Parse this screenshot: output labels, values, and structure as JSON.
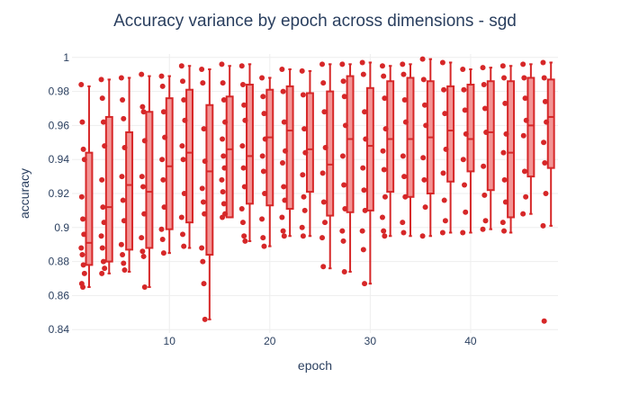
{
  "chart_data": {
    "type": "box",
    "title": "Accuracy variance by epoch across dimensions - sgd",
    "xlabel": "epoch",
    "ylabel": "accuracy",
    "xlim": [
      0.3,
      48.7
    ],
    "ylim": [
      0.838,
      1.002
    ],
    "x_ticks": [
      10,
      20,
      30,
      40
    ],
    "y_ticks": [
      0.84,
      0.86,
      0.88,
      0.9,
      0.92,
      0.94,
      0.96,
      0.98,
      1
    ],
    "y_tick_labels": [
      "0.84",
      "0.86",
      "0.88",
      "0.9",
      "0.92",
      "0.94",
      "0.96",
      "0.98",
      "1"
    ],
    "grid": true,
    "colors": {
      "box_line": "#d62728",
      "box_fill": "#f28e8e",
      "point": "#d62728",
      "text": "#2a3f5f",
      "grid": "#eeeeee"
    },
    "boxes": [
      {
        "epoch": 2,
        "min": 0.865,
        "q1": 0.878,
        "median": 0.891,
        "q3": 0.944,
        "max": 0.983,
        "points": [
          0.984,
          0.962,
          0.946,
          0.94,
          0.918,
          0.905,
          0.896,
          0.888,
          0.884,
          0.878,
          0.873,
          0.867,
          0.865
        ]
      },
      {
        "epoch": 4,
        "min": 0.873,
        "q1": 0.88,
        "median": 0.912,
        "q3": 0.965,
        "max": 0.987,
        "points": [
          0.987,
          0.976,
          0.962,
          0.948,
          0.928,
          0.912,
          0.903,
          0.895,
          0.888,
          0.88,
          0.876,
          0.873
        ]
      },
      {
        "epoch": 6,
        "min": 0.874,
        "q1": 0.887,
        "median": 0.925,
        "q3": 0.956,
        "max": 0.988,
        "points": [
          0.988,
          0.975,
          0.964,
          0.947,
          0.93,
          0.916,
          0.904,
          0.89,
          0.884,
          0.879,
          0.875
        ]
      },
      {
        "epoch": 8,
        "min": 0.865,
        "q1": 0.888,
        "median": 0.921,
        "q3": 0.968,
        "max": 0.989,
        "points": [
          0.99,
          0.971,
          0.968,
          0.951,
          0.93,
          0.924,
          0.908,
          0.894,
          0.886,
          0.883,
          0.865
        ]
      },
      {
        "epoch": 10,
        "min": 0.885,
        "q1": 0.899,
        "median": 0.936,
        "q3": 0.976,
        "max": 0.989,
        "points": [
          0.989,
          0.983,
          0.968,
          0.953,
          0.94,
          0.928,
          0.912,
          0.899,
          0.893,
          0.885
        ]
      },
      {
        "epoch": 12,
        "min": 0.888,
        "q1": 0.903,
        "median": 0.944,
        "q3": 0.981,
        "max": 0.995,
        "points": [
          0.995,
          0.986,
          0.975,
          0.963,
          0.948,
          0.94,
          0.92,
          0.906,
          0.896,
          0.889
        ]
      },
      {
        "epoch": 14,
        "min": 0.846,
        "q1": 0.884,
        "median": 0.933,
        "q3": 0.972,
        "max": 0.993,
        "points": [
          0.993,
          0.985,
          0.958,
          0.939,
          0.923,
          0.915,
          0.908,
          0.888,
          0.88,
          0.867,
          0.846
        ]
      },
      {
        "epoch": 16,
        "min": 0.906,
        "q1": 0.906,
        "median": 0.946,
        "q3": 0.977,
        "max": 0.995,
        "points": [
          0.996,
          0.985,
          0.975,
          0.962,
          0.952,
          0.942,
          0.935,
          0.928,
          0.921,
          0.914,
          0.908,
          0.906
        ]
      },
      {
        "epoch": 18,
        "min": 0.892,
        "q1": 0.914,
        "median": 0.942,
        "q3": 0.984,
        "max": 0.996,
        "points": [
          0.995,
          0.984,
          0.972,
          0.963,
          0.948,
          0.935,
          0.924,
          0.911,
          0.903,
          0.895,
          0.892
        ]
      },
      {
        "epoch": 20,
        "min": 0.889,
        "q1": 0.913,
        "median": 0.953,
        "q3": 0.981,
        "max": 0.988,
        "points": [
          0.988,
          0.977,
          0.967,
          0.952,
          0.942,
          0.933,
          0.92,
          0.905,
          0.894,
          0.889
        ]
      },
      {
        "epoch": 22,
        "min": 0.895,
        "q1": 0.911,
        "median": 0.957,
        "q3": 0.983,
        "max": 0.993,
        "points": [
          0.993,
          0.98,
          0.962,
          0.945,
          0.938,
          0.924,
          0.916,
          0.906,
          0.898,
          0.895
        ]
      },
      {
        "epoch": 24,
        "min": 0.895,
        "q1": 0.921,
        "median": 0.946,
        "q3": 0.979,
        "max": 0.992,
        "points": [
          0.992,
          0.978,
          0.958,
          0.944,
          0.931,
          0.918,
          0.91,
          0.9,
          0.895
        ]
      },
      {
        "epoch": 26,
        "min": 0.876,
        "q1": 0.907,
        "median": 0.937,
        "q3": 0.98,
        "max": 0.996,
        "points": [
          0.996,
          0.985,
          0.968,
          0.947,
          0.932,
          0.915,
          0.903,
          0.894,
          0.877
        ]
      },
      {
        "epoch": 28,
        "min": 0.874,
        "q1": 0.909,
        "median": 0.952,
        "q3": 0.989,
        "max": 0.996,
        "points": [
          0.996,
          0.986,
          0.977,
          0.96,
          0.942,
          0.925,
          0.911,
          0.898,
          0.892,
          0.874
        ]
      },
      {
        "epoch": 30,
        "min": 0.867,
        "q1": 0.91,
        "median": 0.948,
        "q3": 0.982,
        "max": 0.997,
        "points": [
          0.997,
          0.99,
          0.968,
          0.952,
          0.935,
          0.922,
          0.91,
          0.898,
          0.887,
          0.867
        ]
      },
      {
        "epoch": 32,
        "min": 0.895,
        "q1": 0.921,
        "median": 0.952,
        "q3": 0.986,
        "max": 0.995,
        "points": [
          0.995,
          0.989,
          0.976,
          0.958,
          0.945,
          0.934,
          0.918,
          0.906,
          0.898,
          0.895
        ]
      },
      {
        "epoch": 34,
        "min": 0.895,
        "q1": 0.918,
        "median": 0.952,
        "q3": 0.988,
        "max": 0.996,
        "points": [
          0.996,
          0.99,
          0.975,
          0.962,
          0.942,
          0.93,
          0.918,
          0.903,
          0.897
        ]
      },
      {
        "epoch": 36,
        "min": 0.895,
        "q1": 0.92,
        "median": 0.953,
        "q3": 0.986,
        "max": 0.999,
        "points": [
          0.999,
          0.987,
          0.972,
          0.96,
          0.941,
          0.928,
          0.912,
          0.895
        ]
      },
      {
        "epoch": 38,
        "min": 0.897,
        "q1": 0.927,
        "median": 0.957,
        "q3": 0.983,
        "max": 0.997,
        "points": [
          0.997,
          0.981,
          0.967,
          0.946,
          0.932,
          0.916,
          0.904,
          0.897
        ]
      },
      {
        "epoch": 40,
        "min": 0.897,
        "q1": 0.933,
        "median": 0.952,
        "q3": 0.984,
        "max": 0.993,
        "points": [
          0.993,
          0.981,
          0.969,
          0.955,
          0.94,
          0.925,
          0.909,
          0.897
        ]
      },
      {
        "epoch": 42,
        "min": 0.899,
        "q1": 0.922,
        "median": 0.956,
        "q3": 0.986,
        "max": 0.994,
        "points": [
          0.994,
          0.984,
          0.97,
          0.956,
          0.936,
          0.919,
          0.904,
          0.899
        ]
      },
      {
        "epoch": 44,
        "min": 0.897,
        "q1": 0.906,
        "median": 0.944,
        "q3": 0.986,
        "max": 0.995,
        "points": [
          0.995,
          0.988,
          0.973,
          0.955,
          0.944,
          0.928,
          0.915,
          0.903,
          0.898
        ]
      },
      {
        "epoch": 46,
        "min": 0.908,
        "q1": 0.93,
        "median": 0.96,
        "q3": 0.988,
        "max": 0.996,
        "points": [
          0.996,
          0.988,
          0.976,
          0.963,
          0.954,
          0.933,
          0.918,
          0.908
        ]
      },
      {
        "epoch": 48,
        "min": 0.901,
        "q1": 0.935,
        "median": 0.965,
        "q3": 0.987,
        "max": 0.997,
        "points": [
          0.997,
          0.988,
          0.974,
          0.962,
          0.95,
          0.938,
          0.92,
          0.901,
          0.845
        ]
      }
    ]
  }
}
